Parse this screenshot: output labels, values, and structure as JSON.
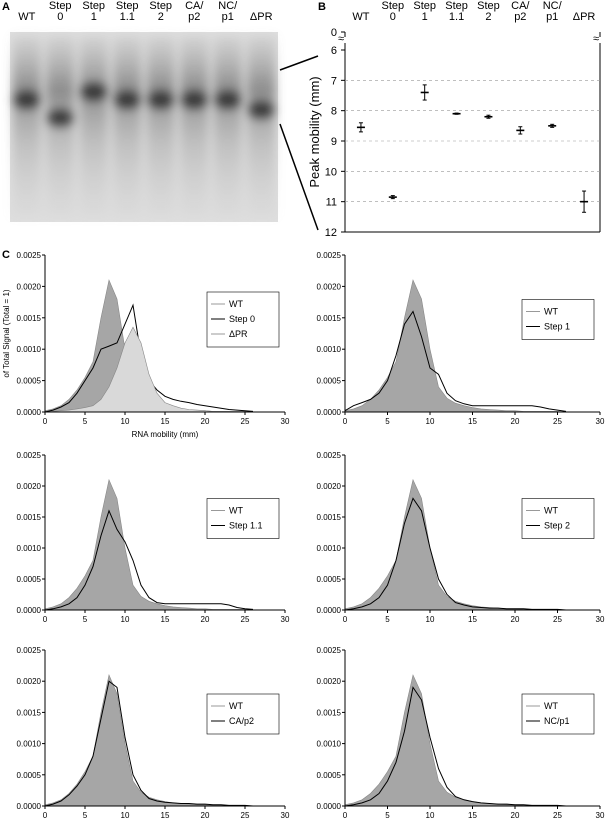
{
  "panel_labels": {
    "a": "A",
    "b": "B",
    "c": "C"
  },
  "gel": {
    "lanes": [
      [
        "WT"
      ],
      [
        "Step",
        "0"
      ],
      [
        "Step",
        "1"
      ],
      [
        "Step",
        "1.1"
      ],
      [
        "Step",
        "2"
      ],
      [
        "CA/",
        "p2"
      ],
      [
        "NC/",
        "p1"
      ],
      [
        "ΔPR"
      ]
    ]
  },
  "chart_data": [
    {
      "type": "errorbar",
      "categories": [
        [
          "WT"
        ],
        [
          "Step",
          "0"
        ],
        [
          "Step",
          "1"
        ],
        [
          "Step",
          "1.1"
        ],
        [
          "Step",
          "2"
        ],
        [
          "CA/",
          "p2"
        ],
        [
          "NC/",
          "p1"
        ],
        [
          "ΔPR"
        ]
      ],
      "values": [
        8.55,
        10.85,
        7.4,
        8.1,
        8.2,
        8.65,
        8.5,
        11.0
      ],
      "errors": [
        0.15,
        0.05,
        0.25,
        0.02,
        0.05,
        0.12,
        0.05,
        0.35
      ],
      "color": "#000000",
      "ylabel": "Peak mobility (mm)",
      "ylim": [
        0,
        12
      ],
      "yticks": [
        0,
        6,
        7,
        8,
        9,
        10,
        11,
        12
      ],
      "y_reversed": true,
      "y_break": [
        0,
        6
      ],
      "break_symbol": "≈",
      "grid": true
    },
    {
      "type": "area-line",
      "ylabel": "of Total Signal (Total = 1)",
      "xlabel": "RNA mobility (mm)",
      "x": [
        0,
        1,
        2,
        3,
        4,
        5,
        6,
        7,
        8,
        9,
        10,
        11,
        12,
        13,
        14,
        15,
        16,
        17,
        18,
        19,
        20,
        21,
        22,
        23,
        24,
        25,
        26
      ],
      "xlim": [
        0,
        30
      ],
      "xticks": [
        0,
        5,
        10,
        15,
        20,
        25,
        30
      ],
      "ylim": [
        0,
        0.0025
      ],
      "yticks": [
        {
          "value": 0,
          "label": "0.0000"
        },
        0.0005,
        {
          "value": 0.001,
          "label": "0.0010"
        },
        0.0015,
        {
          "value": 0.002,
          "label": "0.0020"
        },
        0.0025
      ],
      "legend": "center right",
      "series": [
        {
          "name": "WT",
          "kind": "area",
          "color": "#a6a6a6",
          "values": [
            2e-05,
            5e-05,
            0.0001,
            0.0002,
            0.00035,
            0.00055,
            0.0008,
            0.0015,
            0.0021,
            0.0018,
            0.001,
            0.0004,
            0.00022,
            0.00014,
            0.0001,
            7e-05,
            5e-05,
            4e-05,
            3e-05,
            2e-05,
            2e-05,
            1e-05,
            1e-05,
            1e-05,
            1e-05,
            1e-05,
            0
          ]
        },
        {
          "name": "Step 0",
          "kind": "line",
          "color": "#000000",
          "values": [
            0,
            3e-05,
            8e-05,
            0.00015,
            0.0003,
            0.0005,
            0.0007,
            0.001,
            0.00105,
            0.0011,
            0.0014,
            0.0017,
            0.0009,
            0.0005,
            0.00035,
            0.00025,
            0.0002,
            0.00017,
            0.00015,
            0.00012,
            0.0001,
            8e-05,
            6e-05,
            4e-05,
            3e-05,
            2e-05,
            1e-05
          ]
        },
        {
          "name": "ΔPR",
          "kind": "area",
          "color": "#d9d9d9",
          "values": [
            0,
            1e-05,
            2e-05,
            3e-05,
            5e-05,
            7e-05,
            0.0001,
            0.0002,
            0.0004,
            0.0007,
            0.0011,
            0.00135,
            0.0011,
            0.0006,
            0.0003,
            0.00015,
            0.0001,
            6e-05,
            4e-05,
            3e-05,
            2e-05,
            1e-05,
            1e-05,
            1e-05,
            0,
            0,
            0
          ]
        }
      ]
    },
    {
      "type": "area-line",
      "x": [
        0,
        1,
        2,
        3,
        4,
        5,
        6,
        7,
        8,
        9,
        10,
        11,
        12,
        13,
        14,
        15,
        16,
        17,
        18,
        19,
        20,
        21,
        22,
        23,
        24,
        25,
        26
      ],
      "xlim": [
        0,
        30
      ],
      "xticks": [
        0,
        5,
        10,
        15,
        20,
        25,
        30
      ],
      "ylim": [
        0,
        0.0025
      ],
      "yticks": [
        {
          "value": 0,
          "label": "0.0000"
        },
        0.0005,
        {
          "value": 0.001,
          "label": "0.0010"
        },
        0.0015,
        {
          "value": 0.002,
          "label": "0.0020"
        },
        0.0025
      ],
      "legend": "center right",
      "series": [
        {
          "name": "WT",
          "kind": "area",
          "color": "#a6a6a6",
          "values": [
            2e-05,
            5e-05,
            0.0001,
            0.0002,
            0.00035,
            0.00055,
            0.0008,
            0.0015,
            0.0021,
            0.0018,
            0.001,
            0.0004,
            0.00022,
            0.00014,
            0.0001,
            7e-05,
            5e-05,
            4e-05,
            3e-05,
            2e-05,
            2e-05,
            1e-05,
            1e-05,
            1e-05,
            1e-05,
            1e-05,
            0
          ]
        },
        {
          "name": "Step 1",
          "kind": "line",
          "color": "#000000",
          "values": [
            2e-05,
            0.0001,
            0.00015,
            0.0002,
            0.0003,
            0.0005,
            0.0009,
            0.0014,
            0.0016,
            0.0012,
            0.0007,
            0.0006,
            0.0003,
            0.00018,
            0.00013,
            0.0001,
            0.0001,
            0.0001,
            0.0001,
            0.0001,
            0.0001,
            0.0001,
            0.0001,
            8e-05,
            5e-05,
            3e-05,
            1e-05
          ]
        }
      ]
    },
    {
      "type": "area-line",
      "x": [
        0,
        1,
        2,
        3,
        4,
        5,
        6,
        7,
        8,
        9,
        10,
        11,
        12,
        13,
        14,
        15,
        16,
        17,
        18,
        19,
        20,
        21,
        22,
        23,
        24,
        25,
        26
      ],
      "xlim": [
        0,
        30
      ],
      "xticks": [
        0,
        5,
        10,
        15,
        20,
        25,
        30
      ],
      "ylim": [
        0,
        0.0025
      ],
      "yticks": [
        {
          "value": 0,
          "label": "0.0000"
        },
        0.0005,
        {
          "value": 0.001,
          "label": "0.0010"
        },
        0.0015,
        {
          "value": 0.002,
          "label": "0.0020"
        },
        0.0025
      ],
      "legend": "center right",
      "series": [
        {
          "name": "WT",
          "kind": "area",
          "color": "#a6a6a6",
          "values": [
            2e-05,
            5e-05,
            0.0001,
            0.0002,
            0.00035,
            0.00055,
            0.0008,
            0.0015,
            0.0021,
            0.0018,
            0.001,
            0.0004,
            0.00022,
            0.00014,
            0.0001,
            7e-05,
            5e-05,
            4e-05,
            3e-05,
            2e-05,
            2e-05,
            1e-05,
            1e-05,
            1e-05,
            1e-05,
            1e-05,
            0
          ]
        },
        {
          "name": "Step 1.1",
          "kind": "line",
          "color": "#000000",
          "values": [
            0,
            2e-05,
            5e-05,
            0.0001,
            0.0002,
            0.0004,
            0.0007,
            0.0012,
            0.0016,
            0.0013,
            0.0011,
            0.0008,
            0.0004,
            0.0002,
            0.00012,
            0.0001,
            0.0001,
            0.0001,
            0.0001,
            0.0001,
            0.0001,
            0.0001,
            0.0001,
            8e-05,
            4e-05,
            2e-05,
            1e-05
          ]
        }
      ]
    },
    {
      "type": "area-line",
      "x": [
        0,
        1,
        2,
        3,
        4,
        5,
        6,
        7,
        8,
        9,
        10,
        11,
        12,
        13,
        14,
        15,
        16,
        17,
        18,
        19,
        20,
        21,
        22,
        23,
        24,
        25,
        26
      ],
      "xlim": [
        0,
        30
      ],
      "xticks": [
        0,
        5,
        10,
        15,
        20,
        25,
        30
      ],
      "ylim": [
        0,
        0.0025
      ],
      "yticks": [
        {
          "value": 0,
          "label": "0.0000"
        },
        0.0005,
        {
          "value": 0.001,
          "label": "0.0010"
        },
        0.0015,
        {
          "value": 0.002,
          "label": "0.0020"
        },
        0.0025
      ],
      "legend": "center right",
      "series": [
        {
          "name": "WT",
          "kind": "area",
          "color": "#a6a6a6",
          "values": [
            2e-05,
            5e-05,
            0.0001,
            0.0002,
            0.00035,
            0.00055,
            0.0008,
            0.0015,
            0.0021,
            0.0018,
            0.001,
            0.0004,
            0.00022,
            0.00014,
            0.0001,
            7e-05,
            5e-05,
            4e-05,
            3e-05,
            2e-05,
            2e-05,
            1e-05,
            1e-05,
            1e-05,
            1e-05,
            1e-05,
            0
          ]
        },
        {
          "name": "Step 2",
          "kind": "line",
          "color": "#000000",
          "values": [
            0,
            2e-05,
            5e-05,
            0.0001,
            0.0002,
            0.0004,
            0.0008,
            0.0014,
            0.0018,
            0.0016,
            0.001,
            0.0005,
            0.00025,
            0.00012,
            8e-05,
            5e-05,
            4e-05,
            3e-05,
            3e-05,
            2e-05,
            2e-05,
            2e-05,
            1e-05,
            1e-05,
            1e-05,
            1e-05,
            0
          ]
        }
      ]
    },
    {
      "type": "area-line",
      "x": [
        0,
        1,
        2,
        3,
        4,
        5,
        6,
        7,
        8,
        9,
        10,
        11,
        12,
        13,
        14,
        15,
        16,
        17,
        18,
        19,
        20,
        21,
        22,
        23,
        24,
        25,
        26
      ],
      "xlim": [
        0,
        30
      ],
      "xticks": [
        0,
        5,
        10,
        15,
        20,
        25,
        30
      ],
      "ylim": [
        0,
        0.0025
      ],
      "yticks": [
        {
          "value": 0,
          "label": "0.0000"
        },
        0.0005,
        {
          "value": 0.001,
          "label": "0.0010"
        },
        0.0015,
        {
          "value": 0.002,
          "label": "0.0020"
        },
        0.0025
      ],
      "legend": "center right",
      "series": [
        {
          "name": "WT",
          "kind": "area",
          "color": "#a6a6a6",
          "values": [
            2e-05,
            5e-05,
            0.0001,
            0.0002,
            0.00035,
            0.00055,
            0.0008,
            0.0015,
            0.0021,
            0.0018,
            0.001,
            0.0004,
            0.00022,
            0.00014,
            0.0001,
            7e-05,
            5e-05,
            4e-05,
            3e-05,
            2e-05,
            2e-05,
            1e-05,
            1e-05,
            1e-05,
            1e-05,
            1e-05,
            0
          ]
        },
        {
          "name": "CA/p2",
          "kind": "line",
          "color": "#000000",
          "values": [
            0,
            3e-05,
            8e-05,
            0.00018,
            0.00032,
            0.0005,
            0.0008,
            0.0014,
            0.002,
            0.0019,
            0.0011,
            0.0005,
            0.00025,
            0.00012,
            8e-05,
            6e-05,
            5e-05,
            4e-05,
            4e-05,
            3e-05,
            3e-05,
            2e-05,
            2e-05,
            1e-05,
            1e-05,
            1e-05,
            0
          ]
        }
      ]
    },
    {
      "type": "area-line",
      "x": [
        0,
        1,
        2,
        3,
        4,
        5,
        6,
        7,
        8,
        9,
        10,
        11,
        12,
        13,
        14,
        15,
        16,
        17,
        18,
        19,
        20,
        21,
        22,
        23,
        24,
        25,
        26
      ],
      "xlim": [
        0,
        30
      ],
      "xticks": [
        0,
        5,
        10,
        15,
        20,
        25,
        30
      ],
      "ylim": [
        0,
        0.0025
      ],
      "yticks": [
        {
          "value": 0,
          "label": "0.0000"
        },
        0.0005,
        {
          "value": 0.001,
          "label": "0.0010"
        },
        0.0015,
        {
          "value": 0.002,
          "label": "0.0020"
        },
        0.0025
      ],
      "legend": "center right",
      "series": [
        {
          "name": "WT",
          "kind": "area",
          "color": "#a6a6a6",
          "values": [
            2e-05,
            5e-05,
            0.0001,
            0.0002,
            0.00035,
            0.00055,
            0.0008,
            0.0015,
            0.0021,
            0.0018,
            0.001,
            0.0004,
            0.00022,
            0.00014,
            0.0001,
            7e-05,
            5e-05,
            4e-05,
            3e-05,
            2e-05,
            2e-05,
            1e-05,
            1e-05,
            1e-05,
            1e-05,
            1e-05,
            0
          ]
        },
        {
          "name": "NC/p1",
          "kind": "line",
          "color": "#000000",
          "values": [
            0,
            2e-05,
            5e-05,
            0.0001,
            0.0002,
            0.0004,
            0.0007,
            0.0012,
            0.0019,
            0.0017,
            0.0011,
            0.0006,
            0.0003,
            0.00015,
            0.0001,
            7e-05,
            5e-05,
            4e-05,
            3e-05,
            3e-05,
            2e-05,
            2e-05,
            1e-05,
            1e-05,
            1e-05,
            1e-05,
            0
          ]
        }
      ]
    }
  ]
}
